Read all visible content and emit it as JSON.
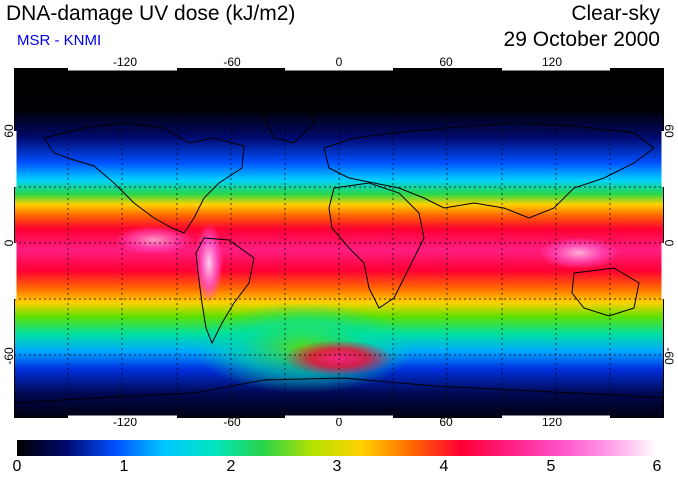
{
  "header": {
    "title": "DNA-damage UV dose (kJ/m2)",
    "subtitle": "MSR - KNMI",
    "sky_condition": "Clear-sky",
    "date": "29 October 2000"
  },
  "map": {
    "projection": "equirectangular",
    "lon_range": [
      -180,
      180
    ],
    "lat_range": [
      -90,
      90
    ],
    "lon_ticks": [
      "-120",
      "-60",
      "0",
      "60",
      "120"
    ],
    "lat_ticks": [
      "60",
      "0",
      "-60"
    ],
    "gridlines": "dashed every 30 degrees",
    "features": [
      "coastlines",
      "high UV band between 20N and 20S",
      "peak over Andes near 10-25S 68W",
      "local maximum over South Atlantic near 60S 0"
    ]
  },
  "colorbar": {
    "min": 0,
    "max": 6,
    "ticks": [
      "0",
      "1",
      "2",
      "3",
      "4",
      "5",
      "6"
    ],
    "colors": [
      "#000000",
      "#000a6e",
      "#0050ff",
      "#00c8ff",
      "#00e5c0",
      "#28d34a",
      "#b4e100",
      "#ffd200",
      "#ff6a00",
      "#ff0032",
      "#ff1e82",
      "#ff50c8",
      "#ff9ae8",
      "#ffffff"
    ]
  }
}
